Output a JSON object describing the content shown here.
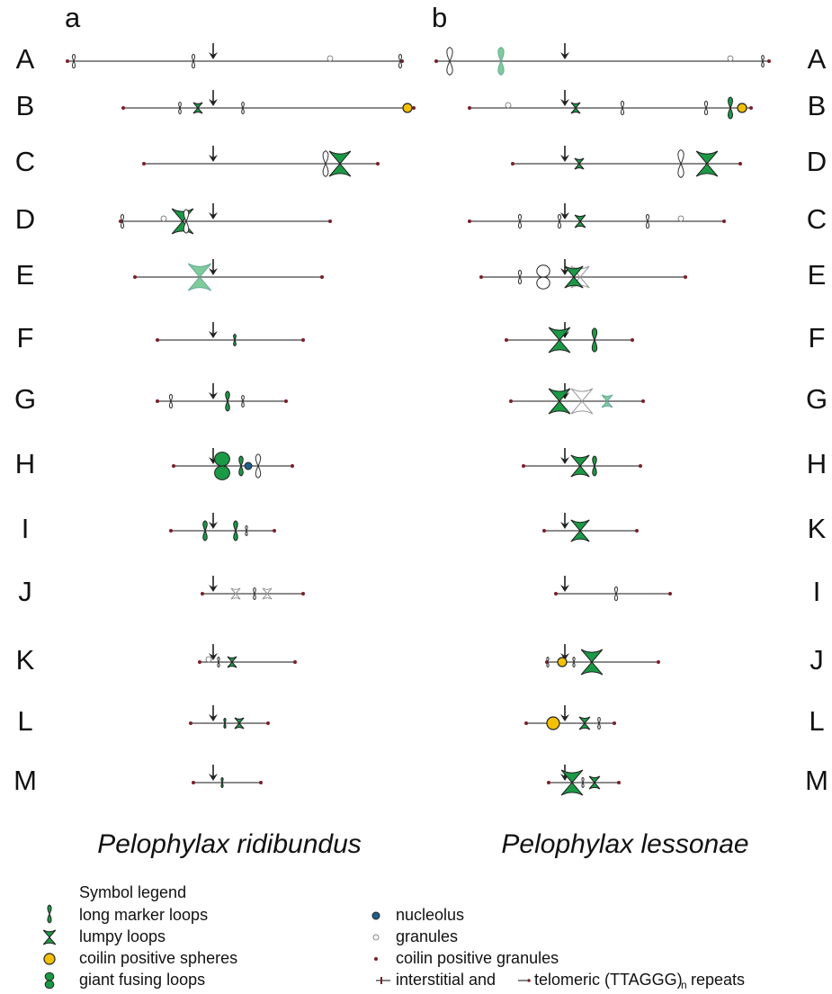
{
  "panels": [
    {
      "label": "a",
      "species": "Pelophylax ridibundus",
      "rows": [
        "A",
        "B",
        "C",
        "D",
        "E",
        "F",
        "G",
        "H",
        "I",
        "J",
        "K",
        "L",
        "M"
      ]
    },
    {
      "label": "b",
      "species": "Pelophylax lessonae",
      "rows": [
        "A",
        "B",
        "D",
        "C",
        "E",
        "F",
        "G",
        "H",
        "K",
        "I",
        "J",
        "L",
        "M"
      ]
    }
  ],
  "legend": {
    "title": "Symbol legend",
    "items": [
      "long marker loops",
      "lumpy loops",
      "coilin positive spheres",
      "giant fusing loops",
      "nucleolus",
      "granules",
      "coilin positive granules"
    ],
    "repeats": {
      "interstitial": "interstitial and",
      "telomeric": "telomeric (TTAGGG)",
      "subscript": "n",
      "suffix": "repeats"
    }
  }
}
